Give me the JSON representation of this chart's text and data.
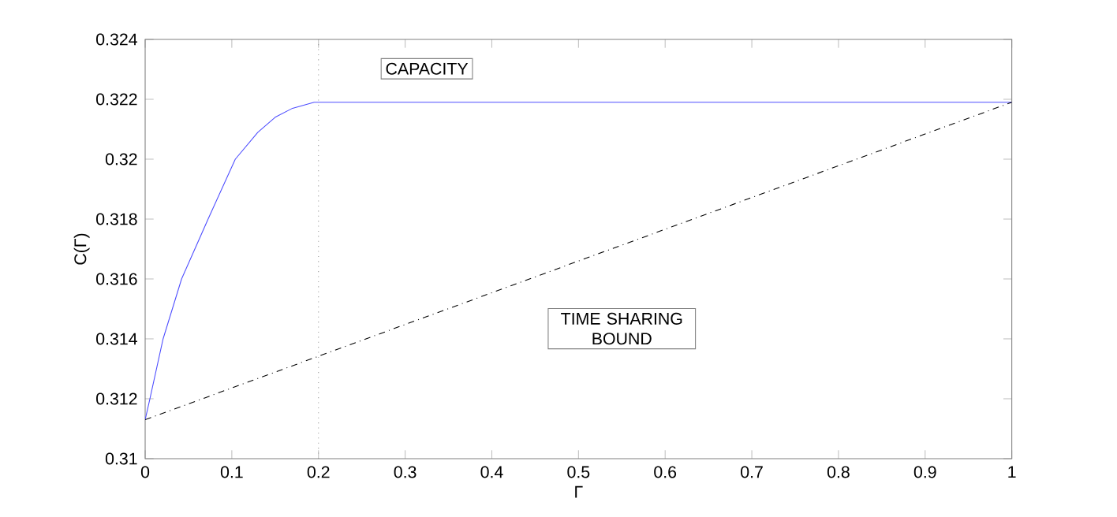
{
  "chart_data": {
    "type": "line",
    "xlabel": "Γ",
    "ylabel": "C(Γ)",
    "xlim": [
      0,
      1
    ],
    "ylim": [
      0.31,
      0.324
    ],
    "xticks": [
      0,
      0.1,
      0.2,
      0.3,
      0.4,
      0.5,
      0.6,
      0.7,
      0.8,
      0.9,
      1
    ],
    "yticks": [
      0.31,
      0.312,
      0.314,
      0.316,
      0.318,
      0.32,
      0.322,
      0.324
    ],
    "grid": false,
    "marker": "none",
    "series": [
      {
        "color": "#4d4dff",
        "line_style": "solid",
        "x": [
          0,
          0.0055,
          0.0207,
          0.042,
          0.0726,
          0.104,
          0.13,
          0.15,
          0.17,
          0.195,
          1
        ],
        "values": [
          0.3113,
          0.312,
          0.314,
          0.316,
          0.318,
          0.32,
          0.3209,
          0.3214,
          0.3217,
          0.3219,
          0.3219
        ]
      },
      {
        "color": "#000000",
        "line_style": "dashdot",
        "x": [
          0,
          1
        ],
        "values": [
          0.3113,
          0.3219
        ]
      }
    ],
    "ref_lines": [
      {
        "axis": "x",
        "value": 0.2,
        "label": null,
        "color": "#999999",
        "line_style": "dotted"
      }
    ],
    "annotations": [
      "CAPACITY",
      "TIME SHARING BOUND"
    ]
  }
}
